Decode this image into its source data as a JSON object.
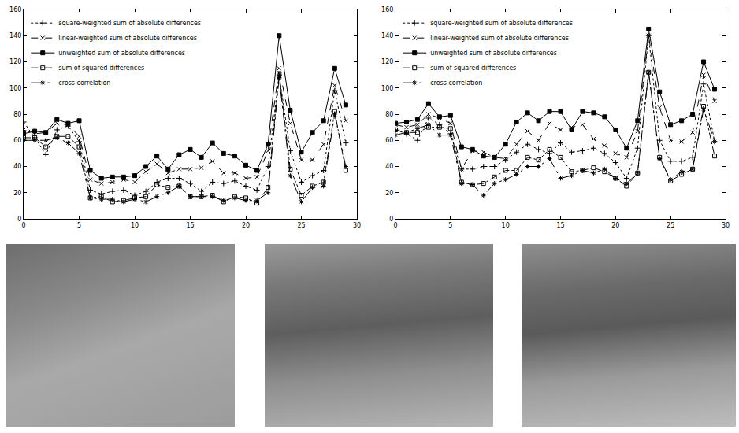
{
  "chart_data": [
    {
      "type": "line",
      "x": [
        0,
        1,
        2,
        3,
        4,
        5,
        6,
        7,
        8,
        9,
        10,
        11,
        12,
        13,
        14,
        15,
        16,
        17,
        18,
        19,
        20,
        21,
        22,
        23,
        24,
        25,
        26,
        27,
        28,
        29
      ],
      "xlim": [
        0,
        30
      ],
      "xticks": [
        0,
        5,
        10,
        15,
        20,
        25,
        30
      ],
      "ylim": [
        0,
        160
      ],
      "yticks": [
        0,
        20,
        40,
        60,
        80,
        100,
        120,
        140,
        160
      ],
      "grid": false,
      "legend": "top left",
      "series": [
        {
          "name": "square-weighted sum of absolute differences",
          "color": "#000000",
          "marker": "plus",
          "line_style": "dotted",
          "values": [
            74,
            62,
            49,
            68,
            71,
            59,
            22,
            19,
            21,
            22,
            18,
            21,
            28,
            31,
            31,
            27,
            21,
            28,
            27,
            29,
            25,
            22,
            40,
            110,
            52,
            28,
            33,
            37,
            98,
            58
          ]
        },
        {
          "name": "linear-weighted sum of absolute differences",
          "color": "#000000",
          "marker": "x",
          "line_style": "dashed",
          "values": [
            68,
            65,
            66,
            73,
            72,
            63,
            30,
            27,
            28,
            30,
            28,
            36,
            42,
            35,
            38,
            38,
            39,
            44,
            35,
            35,
            31,
            32,
            52,
            115,
            73,
            45,
            45,
            57,
            102,
            75
          ]
        },
        {
          "name": "unweighted sum of absolute differences",
          "color": "#000000",
          "marker": "square",
          "line_style": "solid",
          "values": [
            65,
            67,
            66,
            76,
            73,
            75,
            37,
            31,
            32,
            32,
            33,
            40,
            48,
            38,
            49,
            53,
            47,
            58,
            50,
            48,
            41,
            37,
            57,
            140,
            83,
            51,
            66,
            75,
            115,
            87
          ]
        },
        {
          "name": "sum of squared differences",
          "color": "#000000",
          "marker": "square-open",
          "line_style": "dashdot",
          "values": [
            62,
            62,
            55,
            63,
            63,
            55,
            16,
            17,
            13,
            14,
            16,
            17,
            26,
            24,
            25,
            17,
            17,
            18,
            13,
            17,
            16,
            12,
            24,
            111,
            38,
            18,
            25,
            28,
            82,
            37
          ]
        },
        {
          "name": "cross correlation",
          "color": "#000000",
          "marker": "asterisk",
          "line_style": "longdashdot",
          "values": [
            60,
            60,
            60,
            62,
            58,
            50,
            16,
            15,
            15,
            13,
            15,
            13,
            17,
            20,
            25,
            17,
            17,
            17,
            14,
            16,
            14,
            14,
            20,
            108,
            33,
            13,
            24,
            25,
            80,
            40
          ]
        }
      ]
    },
    {
      "type": "line",
      "x": [
        0,
        1,
        2,
        3,
        4,
        5,
        6,
        7,
        8,
        9,
        10,
        11,
        12,
        13,
        14,
        15,
        16,
        17,
        18,
        19,
        20,
        21,
        22,
        23,
        24,
        25,
        26,
        27,
        28,
        29
      ],
      "xlim": [
        0,
        30
      ],
      "xticks": [
        0,
        5,
        10,
        15,
        20,
        25,
        30
      ],
      "ylim": [
        0,
        160
      ],
      "yticks": [
        0,
        20,
        40,
        60,
        80,
        100,
        120,
        140,
        160
      ],
      "grid": false,
      "legend": "top left",
      "series": [
        {
          "name": "square-weighted sum of absolute differences",
          "color": "#000000",
          "marker": "plus",
          "line_style": "dotted",
          "values": [
            68,
            65,
            60,
            77,
            72,
            65,
            38,
            38,
            40,
            40,
            45,
            51,
            57,
            53,
            50,
            58,
            51,
            52,
            54,
            50,
            43,
            31,
            54,
            140,
            60,
            44,
            44,
            47,
            103,
            59
          ]
        },
        {
          "name": "linear-weighted sum of absolute differences",
          "color": "#000000",
          "marker": "x",
          "line_style": "dashed",
          "values": [
            72,
            70,
            72,
            80,
            77,
            73,
            38,
            52,
            51,
            47,
            46,
            57,
            67,
            60,
            73,
            68,
            70,
            72,
            61,
            56,
            50,
            47,
            67,
            140,
            85,
            60,
            59,
            66,
            110,
            90
          ]
        },
        {
          "name": "unweighted sum of absolute differences",
          "color": "#000000",
          "marker": "square",
          "line_style": "solid",
          "values": [
            73,
            74,
            76,
            88,
            78,
            79,
            55,
            53,
            48,
            47,
            57,
            74,
            81,
            75,
            82,
            82,
            68,
            82,
            81,
            78,
            68,
            54,
            75,
            145,
            97,
            72,
            75,
            80,
            120,
            99
          ]
        },
        {
          "name": "sum of squared differences",
          "color": "#000000",
          "marker": "square-open",
          "line_style": "dashdot",
          "values": [
            68,
            66,
            66,
            70,
            70,
            69,
            28,
            26,
            27,
            32,
            37,
            37,
            47,
            45,
            53,
            47,
            36,
            37,
            39,
            36,
            31,
            25,
            35,
            112,
            47,
            29,
            34,
            38,
            86,
            48
          ]
        },
        {
          "name": "cross correlation",
          "color": "#000000",
          "marker": "asterisk",
          "line_style": "longdashdot",
          "values": [
            64,
            66,
            69,
            72,
            64,
            64,
            27,
            26,
            18,
            27,
            30,
            34,
            40,
            40,
            46,
            31,
            33,
            37,
            35,
            38,
            31,
            27,
            35,
            112,
            46,
            30,
            36,
            38,
            84,
            59
          ]
        }
      ]
    }
  ]
}
